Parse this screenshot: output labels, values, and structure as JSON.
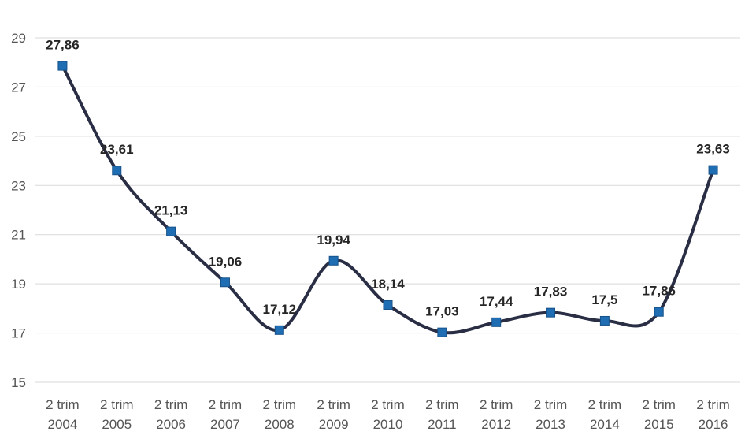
{
  "chart_data": {
    "type": "line",
    "title": "",
    "xlabel": "",
    "ylabel": "",
    "categories": [
      [
        "2 trim",
        "2004"
      ],
      [
        "2 trim",
        "2005"
      ],
      [
        "2 trim",
        "2006"
      ],
      [
        "2 trim",
        "2007"
      ],
      [
        "2 trim",
        "2008"
      ],
      [
        "2 trim",
        "2009"
      ],
      [
        "2 trim",
        "2010"
      ],
      [
        "2 trim",
        "2011"
      ],
      [
        "2 trim",
        "2012"
      ],
      [
        "2 trim",
        "2013"
      ],
      [
        "2 trim",
        "2014"
      ],
      [
        "2 trim",
        "2015"
      ],
      [
        "2 trim",
        "2016"
      ]
    ],
    "series": [
      {
        "values": [
          27.86,
          23.61,
          21.13,
          19.06,
          17.12,
          19.94,
          18.14,
          17.03,
          17.44,
          17.83,
          17.5,
          17.86,
          23.63
        ],
        "labels": [
          "27,86",
          "23,61",
          "21,13",
          "19,06",
          "17,12",
          "19,94",
          "18,14",
          "17,03",
          "17,44",
          "17,83",
          "17,5",
          "17,86",
          "23,63"
        ]
      }
    ],
    "ylim": [
      15,
      29
    ],
    "yticks": [
      "15",
      "17",
      "19",
      "21",
      "23",
      "25",
      "27",
      "29"
    ],
    "grid": true,
    "legend": "none",
    "line_color": "#2a2e45",
    "marker_color": "#1f6db3"
  }
}
